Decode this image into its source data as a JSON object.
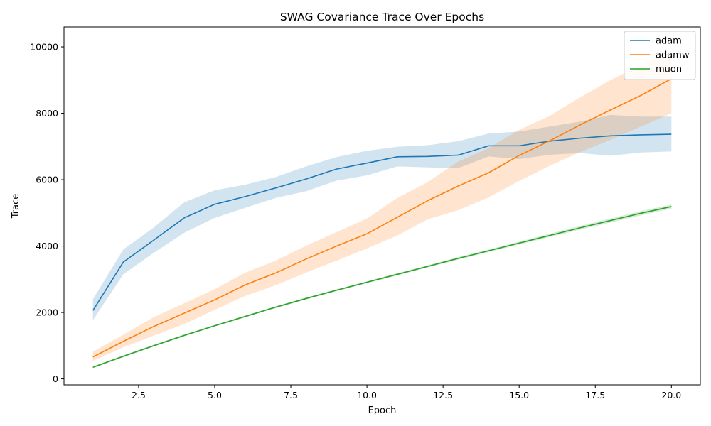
{
  "chart_data": {
    "type": "line",
    "title": "SWAG Covariance Trace Over Epochs",
    "xlabel": "Epoch",
    "ylabel": "Trace",
    "xlim": [
      0.05,
      20.95
    ],
    "ylim": [
      -180,
      10600
    ],
    "x_ticks": [
      2.5,
      5.0,
      7.5,
      10.0,
      12.5,
      15.0,
      17.5,
      20.0
    ],
    "x_tick_labels": [
      "2.5",
      "5.0",
      "7.5",
      "10.0",
      "12.5",
      "15.0",
      "17.5",
      "20.0"
    ],
    "y_ticks": [
      0,
      2000,
      4000,
      6000,
      8000,
      10000
    ],
    "y_tick_labels": [
      "0",
      "2000",
      "4000",
      "6000",
      "8000",
      "10000"
    ],
    "grid": false,
    "legend_position": "top-right",
    "x": [
      1,
      2,
      3,
      4,
      5,
      6,
      7,
      8,
      9,
      10,
      11,
      12,
      13,
      14,
      15,
      16,
      17,
      18,
      19,
      20
    ],
    "series": [
      {
        "name": "adam",
        "color": "#1f77b4",
        "band_color": "#1f77b4",
        "values": [
          2060,
          3520,
          4180,
          4850,
          5260,
          5490,
          5750,
          6020,
          6320,
          6500,
          6690,
          6700,
          6740,
          7020,
          7020,
          7160,
          7250,
          7320,
          7350,
          7370
        ],
        "lower": [
          1770,
          3150,
          3800,
          4400,
          4850,
          5150,
          5450,
          5650,
          5970,
          6130,
          6400,
          6370,
          6350,
          6700,
          6620,
          6750,
          6800,
          6720,
          6820,
          6850
        ],
        "upper": [
          2400,
          3900,
          4560,
          5320,
          5680,
          5850,
          6080,
          6400,
          6680,
          6870,
          6990,
          7040,
          7160,
          7390,
          7450,
          7600,
          7750,
          7950,
          7900,
          7900
        ]
      },
      {
        "name": "adamw",
        "color": "#ff7f0e",
        "band_color": "#ff7f0e",
        "values": [
          660,
          1130,
          1580,
          1980,
          2380,
          2830,
          3190,
          3610,
          4000,
          4370,
          4870,
          5370,
          5810,
          6210,
          6730,
          7170,
          7650,
          8100,
          8540,
          9040
        ],
        "lower": [
          540,
          950,
          1300,
          1650,
          2080,
          2500,
          2820,
          3200,
          3560,
          3930,
          4320,
          4810,
          5080,
          5470,
          5960,
          6420,
          6830,
          7200,
          7600,
          8000
        ],
        "upper": [
          820,
          1330,
          1860,
          2280,
          2700,
          3200,
          3560,
          4010,
          4420,
          4830,
          5450,
          5930,
          6550,
          6950,
          7500,
          7920,
          8480,
          9000,
          9450,
          9900
        ]
      },
      {
        "name": "muon",
        "color": "#2ca02c",
        "band_color": "#2ca02c",
        "values": [
          350,
          680,
          1000,
          1310,
          1600,
          1880,
          2160,
          2420,
          2670,
          2910,
          3150,
          3390,
          3630,
          3860,
          4090,
          4320,
          4550,
          4770,
          4990,
          5190
        ],
        "lower": [
          320,
          650,
          970,
          1280,
          1575,
          1855,
          2130,
          2390,
          2640,
          2880,
          3115,
          3355,
          3590,
          3820,
          4045,
          4270,
          4495,
          4710,
          4925,
          5130
        ],
        "upper": [
          380,
          710,
          1030,
          1340,
          1625,
          1905,
          2190,
          2450,
          2700,
          2940,
          3185,
          3425,
          3670,
          3900,
          4135,
          4370,
          4605,
          4830,
          5055,
          5250
        ]
      }
    ]
  }
}
